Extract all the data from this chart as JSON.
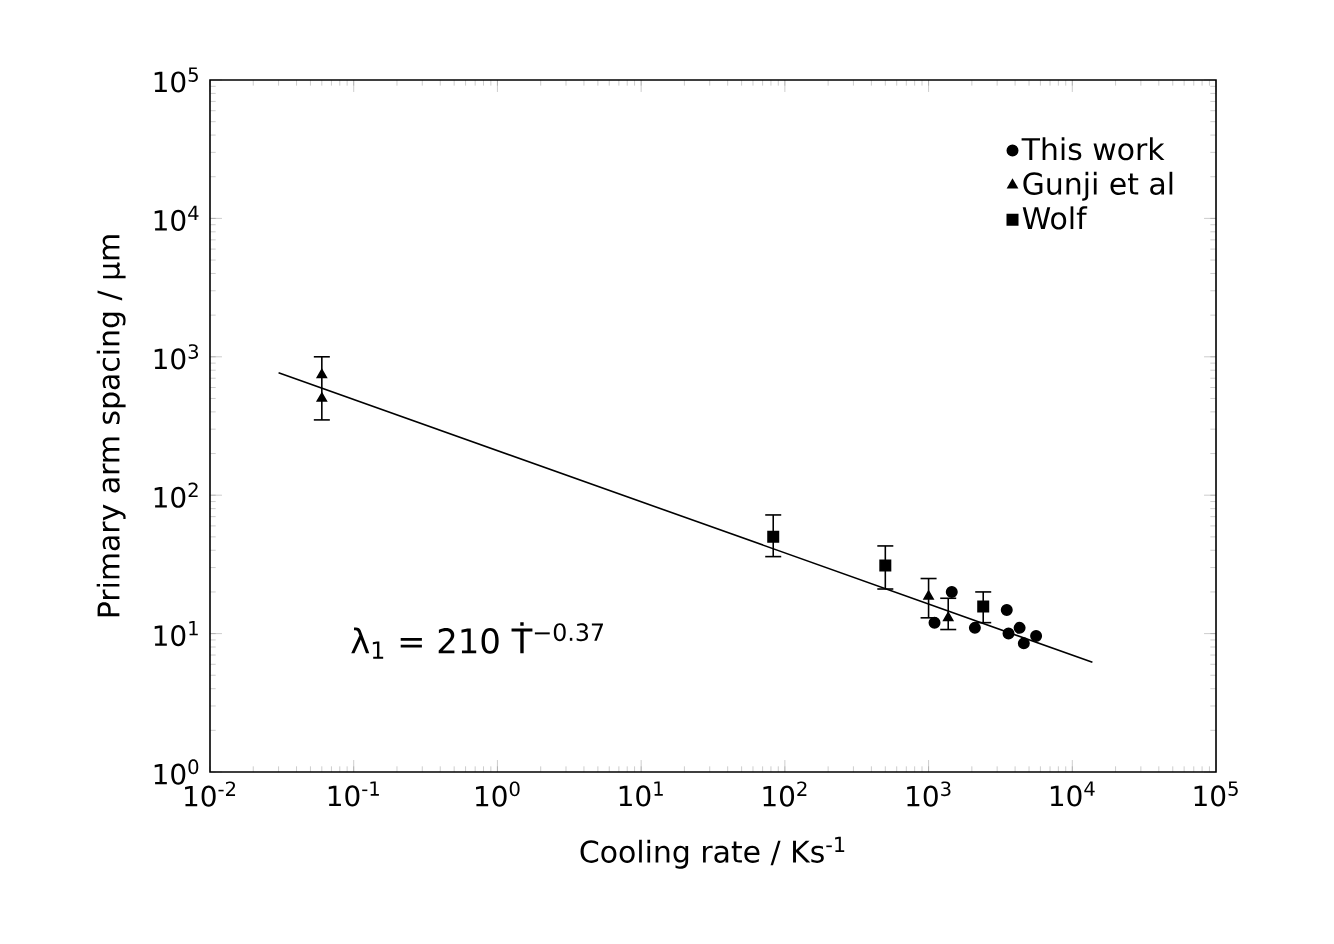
{
  "chart_data": {
    "type": "scatter",
    "xlabel": "Cooling rate  / Ks$^{-1}$",
    "ylabel": "Primary arm spacing / µm",
    "log": "xy",
    "xlim": [
      0.01,
      100000
    ],
    "ylim": [
      1,
      100000
    ],
    "xticks": [
      {
        "value": 0.01,
        "label": "10$^{-2}$"
      },
      {
        "value": 0.1,
        "label": "10$^{-1}$"
      },
      {
        "value": 1,
        "label": "10$^{0}$"
      },
      {
        "value": 10,
        "label": "10$^{1}$"
      },
      {
        "value": 100,
        "label": "10$^{2}$"
      },
      {
        "value": 1000,
        "label": "10$^{3}$"
      },
      {
        "value": 10000,
        "label": "10$^{4}$"
      },
      {
        "value": 100000,
        "label": "10$^{5}$"
      }
    ],
    "yticks": [
      {
        "value": 1,
        "label": "10$^{0}$"
      },
      {
        "value": 10,
        "label": "10$^{1}$"
      },
      {
        "value": 100,
        "label": "10$^{2}$"
      },
      {
        "value": 1000,
        "label": "10$^{3}$"
      },
      {
        "value": 10000,
        "label": "10$^{4}$"
      },
      {
        "value": 100000,
        "label": "10$^{5}$"
      }
    ],
    "grid": false,
    "legend": "top right",
    "annotations": [
      "λ$_{1}$ = 210 Ṫ$^{−0.37}$"
    ],
    "series": [
      {
        "name": "This work",
        "color": "#000000",
        "marker": "circle",
        "x": [
          1100,
          1450,
          2100,
          3500,
          3600,
          4300,
          4600,
          5600
        ],
        "values": [
          12,
          20,
          11,
          14.8,
          10,
          11,
          8.5,
          9.6
        ]
      },
      {
        "name": "Gunji et al",
        "color": "#000000",
        "marker": "triangle",
        "x": [
          0.06,
          0.06,
          1000,
          1370
        ],
        "values": [
          740,
          500,
          18.6,
          13
        ],
        "errors": [
          [
            350,
            1000
          ],
          null,
          [
            13,
            25
          ],
          [
            10.7,
            18
          ]
        ]
      },
      {
        "name": "Wolf",
        "color": "#000000",
        "marker": "square",
        "x": [
          83,
          500,
          2400
        ],
        "values": [
          50,
          31,
          15.7
        ],
        "errors": [
          [
            36,
            72
          ],
          [
            21,
            43
          ],
          [
            12,
            20
          ]
        ]
      },
      {
        "type": "line",
        "color": "#000000",
        "marker": "none",
        "line_style": "solid",
        "x": [
          0.03,
          13800
        ],
        "values": [
          768,
          6.2
        ]
      }
    ]
  }
}
